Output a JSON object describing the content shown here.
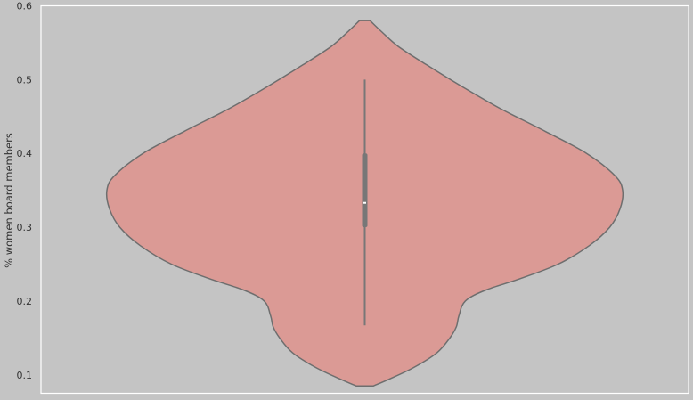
{
  "chart_data": {
    "type": "violin",
    "title": "",
    "xlabel": "",
    "ylabel": "% women board members",
    "ylim": [
      0.075,
      0.6
    ],
    "yticks": [
      0.1,
      0.2,
      0.3,
      0.4,
      0.5,
      0.6
    ],
    "ytick_labels": [
      "0.1",
      "0.2",
      "0.3",
      "0.4",
      "0.5",
      "0.6"
    ],
    "grid": false,
    "colors": {
      "background": "#c4c4c4",
      "violin_fill": "#db9a95",
      "violin_stroke": "#6e6e6e",
      "box": "#777777",
      "median": "#ffffff",
      "frame": "#ffffff"
    },
    "violin": {
      "min": 0.085,
      "max": 0.58,
      "whisker_low": 0.167,
      "whisker_high": 0.5,
      "q1": 0.3,
      "median": 0.333,
      "q3": 0.4,
      "density_profile": [
        {
          "y": 0.085,
          "w": 0.034
        },
        {
          "y": 0.095,
          "w": 0.1
        },
        {
          "y": 0.11,
          "w": 0.19
        },
        {
          "y": 0.13,
          "w": 0.28
        },
        {
          "y": 0.15,
          "w": 0.33
        },
        {
          "y": 0.165,
          "w": 0.355
        },
        {
          "y": 0.18,
          "w": 0.365
        },
        {
          "y": 0.2,
          "w": 0.39
        },
        {
          "y": 0.215,
          "w": 0.47
        },
        {
          "y": 0.23,
          "w": 0.6
        },
        {
          "y": 0.25,
          "w": 0.75
        },
        {
          "y": 0.275,
          "w": 0.87
        },
        {
          "y": 0.3,
          "w": 0.95
        },
        {
          "y": 0.325,
          "w": 0.99
        },
        {
          "y": 0.35,
          "w": 1.0
        },
        {
          "y": 0.37,
          "w": 0.97
        },
        {
          "y": 0.4,
          "w": 0.86
        },
        {
          "y": 0.43,
          "w": 0.7
        },
        {
          "y": 0.46,
          "w": 0.53
        },
        {
          "y": 0.49,
          "w": 0.38
        },
        {
          "y": 0.52,
          "w": 0.24
        },
        {
          "y": 0.545,
          "w": 0.13
        },
        {
          "y": 0.565,
          "w": 0.065
        },
        {
          "y": 0.58,
          "w": 0.02
        }
      ]
    }
  }
}
